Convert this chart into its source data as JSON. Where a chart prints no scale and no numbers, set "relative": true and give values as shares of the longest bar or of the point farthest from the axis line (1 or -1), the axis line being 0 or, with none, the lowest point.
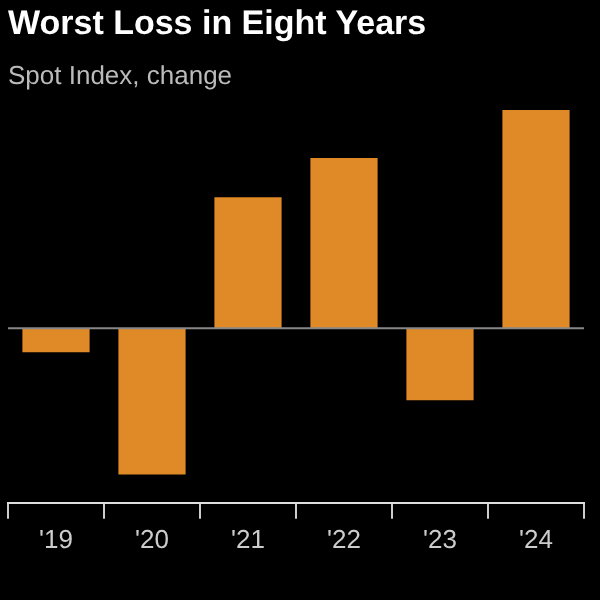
{
  "chart_data": {
    "type": "bar",
    "title": "Worst Loss in Eight Years",
    "subtitle": "Spot Index, change",
    "categories": [
      "'19",
      "'20",
      "'21",
      "'22",
      "'23",
      "'24"
    ],
    "relative": true,
    "color": "#e08a27",
    "values": [
      -0.11,
      -0.67,
      0.6,
      0.78,
      -0.33,
      1
    ],
    "grid": false,
    "legend": false
  }
}
